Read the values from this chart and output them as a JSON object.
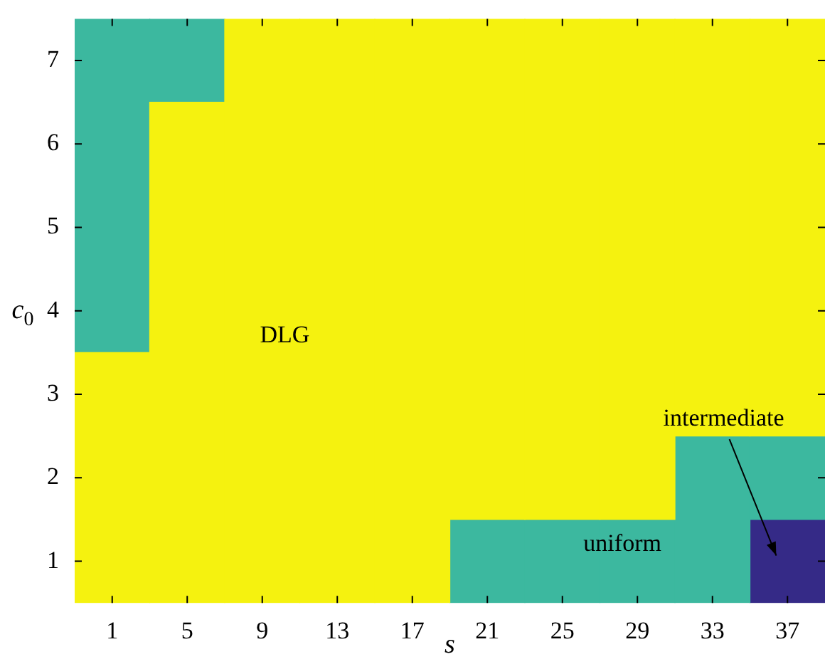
{
  "chart_data": {
    "type": "bar",
    "xlabel": "s",
    "ylabel": "c$_{0}$",
    "categories": [
      "1",
      "5",
      "9",
      "13",
      "17",
      "21",
      "25",
      "29",
      "33",
      "37"
    ],
    "ylim": [
      0.5,
      7.5
    ],
    "yticks": [
      1,
      2,
      3,
      4,
      5,
      6,
      7
    ],
    "series": [
      {
        "name": "DLG",
        "color": "#f5f20f",
        "base": [
          0.5,
          0.5,
          0.5,
          0.5,
          0.5,
          1.5,
          1.5,
          1.5,
          2.5,
          2.5
        ],
        "values": [
          3,
          6,
          7,
          7,
          7,
          6,
          6,
          6,
          5,
          5
        ]
      },
      {
        "name": "uniform",
        "color": "#3cb89f",
        "base": [
          3.5,
          6.5,
          null,
          null,
          null,
          0.5,
          0.5,
          0.5,
          0.5,
          1.5
        ],
        "values": [
          4,
          1,
          null,
          null,
          null,
          1,
          1,
          1,
          2,
          1
        ]
      },
      {
        "name": "intermediate",
        "color": "#352a87",
        "base": [
          null,
          null,
          null,
          null,
          null,
          null,
          null,
          null,
          null,
          0.5
        ],
        "values": [
          null,
          null,
          null,
          null,
          null,
          null,
          null,
          null,
          null,
          1
        ]
      }
    ]
  }
}
